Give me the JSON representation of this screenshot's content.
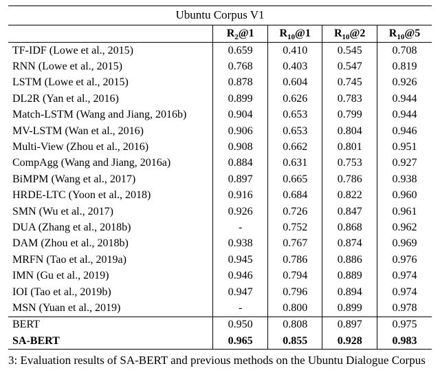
{
  "title": "Ubuntu Corpus V1",
  "columns": [
    {
      "base": "R",
      "sub": "2",
      "at": "@1"
    },
    {
      "base": "R",
      "sub": "10",
      "at": "@1"
    },
    {
      "base": "R",
      "sub": "10",
      "at": "@2"
    },
    {
      "base": "R",
      "sub": "10",
      "at": "@5"
    }
  ],
  "chart_data": {
    "type": "table",
    "title": "Ubuntu Corpus V1",
    "column_headers": [
      "R2@1",
      "R10@1",
      "R10@2",
      "R10@5"
    ],
    "rows": [
      {
        "method": "TF-IDF (Lowe et al., 2015)",
        "values": [
          "0.659",
          "0.410",
          "0.545",
          "0.708"
        ],
        "bold": false,
        "sep": false
      },
      {
        "method": "RNN (Lowe et al., 2015)",
        "values": [
          "0.768",
          "0.403",
          "0.547",
          "0.819"
        ],
        "bold": false,
        "sep": false
      },
      {
        "method": "LSTM (Lowe et al., 2015)",
        "values": [
          "0.878",
          "0.604",
          "0.745",
          "0.926"
        ],
        "bold": false,
        "sep": false
      },
      {
        "method": "DL2R (Yan et al., 2016)",
        "values": [
          "0.899",
          "0.626",
          "0.783",
          "0.944"
        ],
        "bold": false,
        "sep": false
      },
      {
        "method": "Match-LSTM (Wang and Jiang, 2016b)",
        "values": [
          "0.904",
          "0.653",
          "0.799",
          "0.944"
        ],
        "bold": false,
        "sep": false
      },
      {
        "method": "MV-LSTM (Wan et al., 2016)",
        "values": [
          "0.906",
          "0.653",
          "0.804",
          "0.946"
        ],
        "bold": false,
        "sep": false
      },
      {
        "method": "Multi-View (Zhou et al., 2016)",
        "values": [
          "0.908",
          "0.662",
          "0.801",
          "0.951"
        ],
        "bold": false,
        "sep": false
      },
      {
        "method": "CompAgg (Wang and Jiang, 2016a)",
        "values": [
          "0.884",
          "0.631",
          "0.753",
          "0.927"
        ],
        "bold": false,
        "sep": false
      },
      {
        "method": "BiMPM (Wang et al., 2017)",
        "values": [
          "0.897",
          "0.665",
          "0.786",
          "0.938"
        ],
        "bold": false,
        "sep": false
      },
      {
        "method": "HRDE-LTC (Yoon et al., 2018)",
        "values": [
          "0.916",
          "0.684",
          "0.822",
          "0.960"
        ],
        "bold": false,
        "sep": false
      },
      {
        "method": "SMN (Wu et al., 2017)",
        "values": [
          "0.926",
          "0.726",
          "0.847",
          "0.961"
        ],
        "bold": false,
        "sep": false
      },
      {
        "method": "DUA (Zhang et al., 2018b)",
        "values": [
          "-",
          "0.752",
          "0.868",
          "0.962"
        ],
        "bold": false,
        "sep": false
      },
      {
        "method": "DAM (Zhou et al., 2018b)",
        "values": [
          "0.938",
          "0.767",
          "0.874",
          "0.969"
        ],
        "bold": false,
        "sep": false
      },
      {
        "method": "MRFN (Tao et al., 2019a)",
        "values": [
          "0.945",
          "0.786",
          "0.886",
          "0.976"
        ],
        "bold": false,
        "sep": false
      },
      {
        "method": "IMN (Gu et al., 2019)",
        "values": [
          "0.946",
          "0.794",
          "0.889",
          "0.974"
        ],
        "bold": false,
        "sep": false
      },
      {
        "method": "IOI (Tao et al., 2019b)",
        "values": [
          "0.947",
          "0.796",
          "0.894",
          "0.974"
        ],
        "bold": false,
        "sep": false
      },
      {
        "method": "MSN (Yuan et al., 2019)",
        "values": [
          "-",
          "0.800",
          "0.899",
          "0.978"
        ],
        "bold": false,
        "sep": false
      },
      {
        "method": "BERT",
        "values": [
          "0.950",
          "0.808",
          "0.897",
          "0.975"
        ],
        "bold": false,
        "sep": true
      },
      {
        "method": "SA-BERT",
        "values": [
          "0.965",
          "0.855",
          "0.928",
          "0.983"
        ],
        "bold": true,
        "sep": false
      }
    ]
  },
  "caption": "3: Evaluation results of SA-BERT and previous methods on the Ubuntu Dialogue Corpus"
}
